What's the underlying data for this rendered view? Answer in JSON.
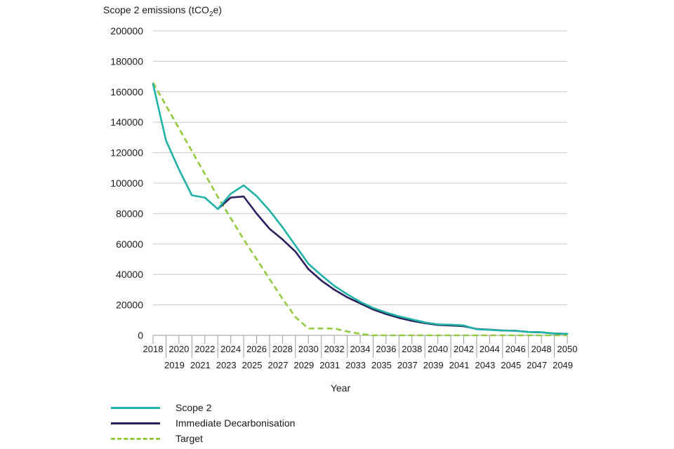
{
  "chart_data": {
    "type": "line",
    "ylabel_main": "Scope 2 emissions (tCO",
    "ylabel_sub": "2",
    "ylabel_end": "e)",
    "xlabel": "Year",
    "ylim": [
      0,
      200000
    ],
    "yticks": [
      0,
      20000,
      40000,
      60000,
      80000,
      100000,
      120000,
      140000,
      160000,
      180000,
      200000
    ],
    "ytick_labels": [
      "0",
      "20000",
      "40000",
      "60000",
      "80000",
      "100000",
      "120000",
      "140000",
      "160000",
      "180000",
      "200000"
    ],
    "x": [
      2018,
      2019,
      2020,
      2021,
      2022,
      2023,
      2024,
      2025,
      2026,
      2027,
      2028,
      2029,
      2030,
      2031,
      2032,
      2033,
      2034,
      2035,
      2036,
      2037,
      2038,
      2039,
      2040,
      2041,
      2042,
      2043,
      2044,
      2045,
      2046,
      2047,
      2048,
      2049,
      2050
    ],
    "grid": "horizontal",
    "series": [
      {
        "name": "Scope 2",
        "color": "#1fb2a6",
        "style": "solid",
        "values": [
          165000,
          128000,
          109000,
          92000,
          90500,
          83000,
          93000,
          98500,
          91500,
          82000,
          71000,
          59000,
          47000,
          39500,
          32500,
          27000,
          22000,
          18000,
          15000,
          12500,
          10500,
          8500,
          7200,
          7000,
          6500,
          4000,
          3600,
          3200,
          3000,
          2200,
          2000,
          1200,
          1000
        ]
      },
      {
        "name": "Immediate Decarbonisation",
        "color": "#2a1f5c",
        "style": "solid",
        "values": [
          null,
          null,
          null,
          null,
          null,
          83000,
          90500,
          91200,
          80000,
          70000,
          63000,
          55000,
          43500,
          36000,
          30000,
          25000,
          21000,
          17000,
          14000,
          11500,
          9500,
          8000,
          6800,
          6500,
          6000,
          4200,
          3700,
          3200,
          3000,
          2200,
          2000,
          1200,
          1000
        ]
      },
      {
        "name": "Target",
        "color": "#93c93d",
        "style": "dashed",
        "values": [
          166000,
          151000,
          136000,
          121000,
          106000,
          91000,
          77000,
          63000,
          50000,
          37000,
          24000,
          12000,
          4500,
          4500,
          4500,
          2500,
          1000,
          0,
          0,
          0,
          0,
          0,
          0,
          0,
          0,
          0,
          0,
          0,
          0,
          0,
          0,
          0,
          0
        ]
      }
    ]
  }
}
